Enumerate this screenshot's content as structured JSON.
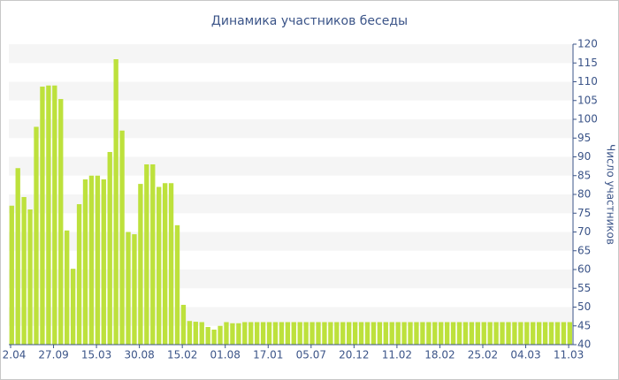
{
  "chart_data": {
    "type": "bar",
    "title": "Динамика участников беседы",
    "y_label": "Число участников",
    "y_axis_side": "right",
    "color": "#bde13c",
    "grid": true,
    "ylim": [
      40,
      120
    ],
    "yticks": [
      40,
      45,
      50,
      55,
      60,
      65,
      70,
      75,
      80,
      85,
      90,
      95,
      100,
      105,
      110,
      115,
      120
    ],
    "categories": [
      "2.04",
      null,
      null,
      null,
      null,
      null,
      null,
      "27.09",
      null,
      null,
      null,
      null,
      null,
      null,
      "15.03",
      null,
      null,
      null,
      null,
      null,
      null,
      "30.08",
      null,
      null,
      null,
      null,
      null,
      null,
      "15.02",
      null,
      null,
      null,
      null,
      null,
      null,
      "01.08",
      null,
      null,
      null,
      null,
      null,
      null,
      "17.01",
      null,
      null,
      null,
      null,
      null,
      null,
      "05.07",
      null,
      null,
      null,
      null,
      null,
      null,
      "20.12",
      null,
      null,
      null,
      null,
      null,
      null,
      "11.02",
      null,
      null,
      null,
      null,
      null,
      null,
      "18.02",
      null,
      null,
      null,
      null,
      null,
      null,
      "25.02",
      null,
      null,
      null,
      null,
      null,
      null,
      "04.03",
      null,
      null,
      null,
      null,
      null,
      null,
      "11.03"
    ],
    "values": [
      77,
      87,
      79.3,
      76,
      98,
      108.7,
      109,
      109,
      105.4,
      70.4,
      60.2,
      77.4,
      84,
      85,
      85,
      84,
      91.3,
      116,
      97,
      70,
      69.4,
      82.8,
      88,
      88,
      82,
      83,
      83,
      71.8,
      50.6,
      46.3,
      46.1,
      46,
      44.7,
      44,
      45,
      46,
      45.7,
      45.7,
      46,
      46,
      46,
      46,
      46,
      46,
      46,
      46,
      46,
      46,
      46,
      46,
      46,
      46,
      46,
      46,
      46,
      46,
      46,
      46,
      46,
      46,
      46,
      46,
      46,
      46,
      46,
      46,
      46,
      46,
      46,
      46,
      46,
      46,
      46,
      46,
      46,
      46,
      46,
      46,
      46,
      46,
      46,
      46,
      46,
      46,
      46,
      46,
      46,
      46,
      46,
      46,
      46,
      46
    ]
  }
}
